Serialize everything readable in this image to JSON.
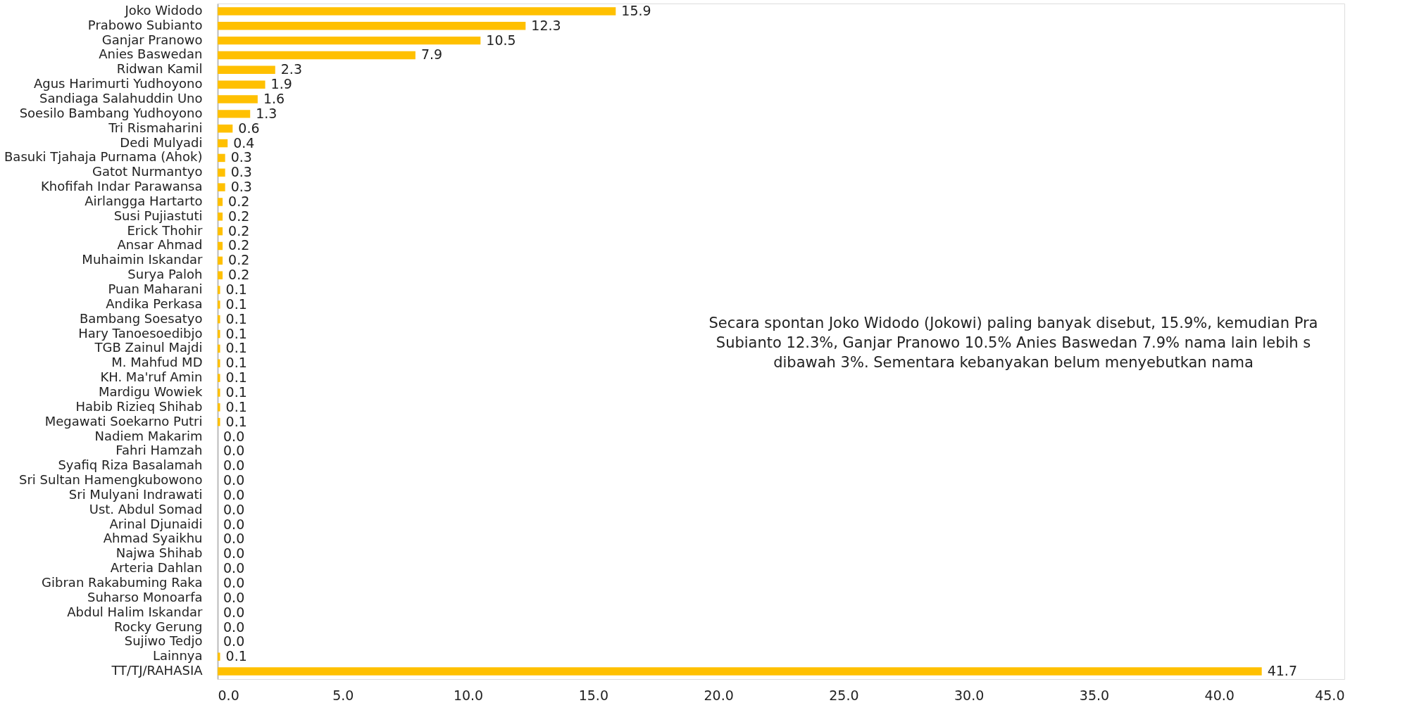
{
  "chart_data": {
    "type": "bar",
    "orientation": "horizontal",
    "categories": [
      "Joko Widodo",
      "Prabowo Subianto",
      "Ganjar Pranowo",
      "Anies Baswedan",
      "Ridwan Kamil",
      "Agus Harimurti Yudhoyono",
      "Sandiaga Salahuddin Uno",
      "Soesilo Bambang Yudhoyono",
      "Tri Rismaharini",
      "Dedi Mulyadi",
      "Basuki Tjahaja Purnama (Ahok)",
      "Gatot Nurmantyo",
      "Khofifah Indar Parawansa",
      "Airlangga Hartarto",
      "Susi Pujiastuti",
      "Erick Thohir",
      "Ansar Ahmad",
      "Muhaimin Iskandar",
      "Surya Paloh",
      "Puan Maharani",
      "Andika Perkasa",
      "Bambang Soesatyo",
      "Hary Tanoesoedibjo",
      "TGB Zainul Majdi",
      "M. Mahfud MD",
      "KH. Ma'ruf Amin",
      "Mardigu Wowiek",
      "Habib Rizieq Shihab",
      "Megawati Soekarno Putri",
      "Nadiem Makarim",
      "Fahri Hamzah",
      "Syafiq Riza Basalamah",
      "Sri Sultan Hamengkubowono",
      "Sri Mulyani Indrawati",
      "Ust. Abdul Somad",
      "Arinal Djunaidi",
      "Ahmad Syaikhu",
      "Najwa Shihab",
      "Arteria Dahlan",
      "Gibran Rakabuming Raka",
      "Suharso Monoarfa",
      "Abdul Halim Iskandar",
      "Rocky Gerung",
      "Sujiwo Tedjo",
      "Lainnya",
      "TT/TJ/RAHASIA"
    ],
    "values": [
      15.9,
      12.3,
      10.5,
      7.9,
      2.3,
      1.9,
      1.6,
      1.3,
      0.6,
      0.4,
      0.3,
      0.3,
      0.3,
      0.2,
      0.2,
      0.2,
      0.2,
      0.2,
      0.2,
      0.1,
      0.1,
      0.1,
      0.1,
      0.1,
      0.1,
      0.1,
      0.1,
      0.1,
      0.1,
      0.0,
      0.0,
      0.0,
      0.0,
      0.0,
      0.0,
      0.0,
      0.0,
      0.0,
      0.0,
      0.0,
      0.0,
      0.0,
      0.0,
      0.0,
      0.1,
      41.7
    ],
    "value_labels": [
      "15.9",
      "12.3",
      "10.5",
      "7.9",
      "2.3",
      "1.9",
      "1.6",
      "1.3",
      "0.6",
      "0.4",
      "0.3",
      "0.3",
      "0.3",
      "0.2",
      "0.2",
      "0.2",
      "0.2",
      "0.2",
      "0.2",
      "0.1",
      "0.1",
      "0.1",
      "0.1",
      "0.1",
      "0.1",
      "0.1",
      "0.1",
      "0.1",
      "0.1",
      "0.0",
      "0.0",
      "0.0",
      "0.0",
      "0.0",
      "0.0",
      "0.0",
      "0.0",
      "0.0",
      "0.0",
      "0.0",
      "0.0",
      "0.0",
      "0.0",
      "0.0",
      "0.1",
      "41.7"
    ],
    "color": "#ffc000",
    "xlim": [
      0,
      45
    ],
    "xticks": [
      {
        "value": 0,
        "label": "0.0"
      },
      {
        "value": 5,
        "label": "5.0"
      },
      {
        "value": 10,
        "label": "10.0"
      },
      {
        "value": 15,
        "label": "15.0"
      },
      {
        "value": 20,
        "label": "20.0"
      },
      {
        "value": 25,
        "label": "25.0"
      },
      {
        "value": 30,
        "label": "30.0"
      },
      {
        "value": 35,
        "label": "35.0"
      },
      {
        "value": 40,
        "label": "40.0"
      },
      {
        "value": 45,
        "label": "45.0"
      }
    ],
    "grid": false,
    "annotations": [
      "Secara spontan Joko Widodo (Jokowi) paling banyak disebut, 15.9%, kemudian Pra",
      "Subianto 12.3%, Ganjar Pranowo 10.5% Anies Baswedan 7.9% nama lain lebih s",
      "dibawah 3%. Sementara kebanyakan belum menyebutkan nama"
    ]
  }
}
